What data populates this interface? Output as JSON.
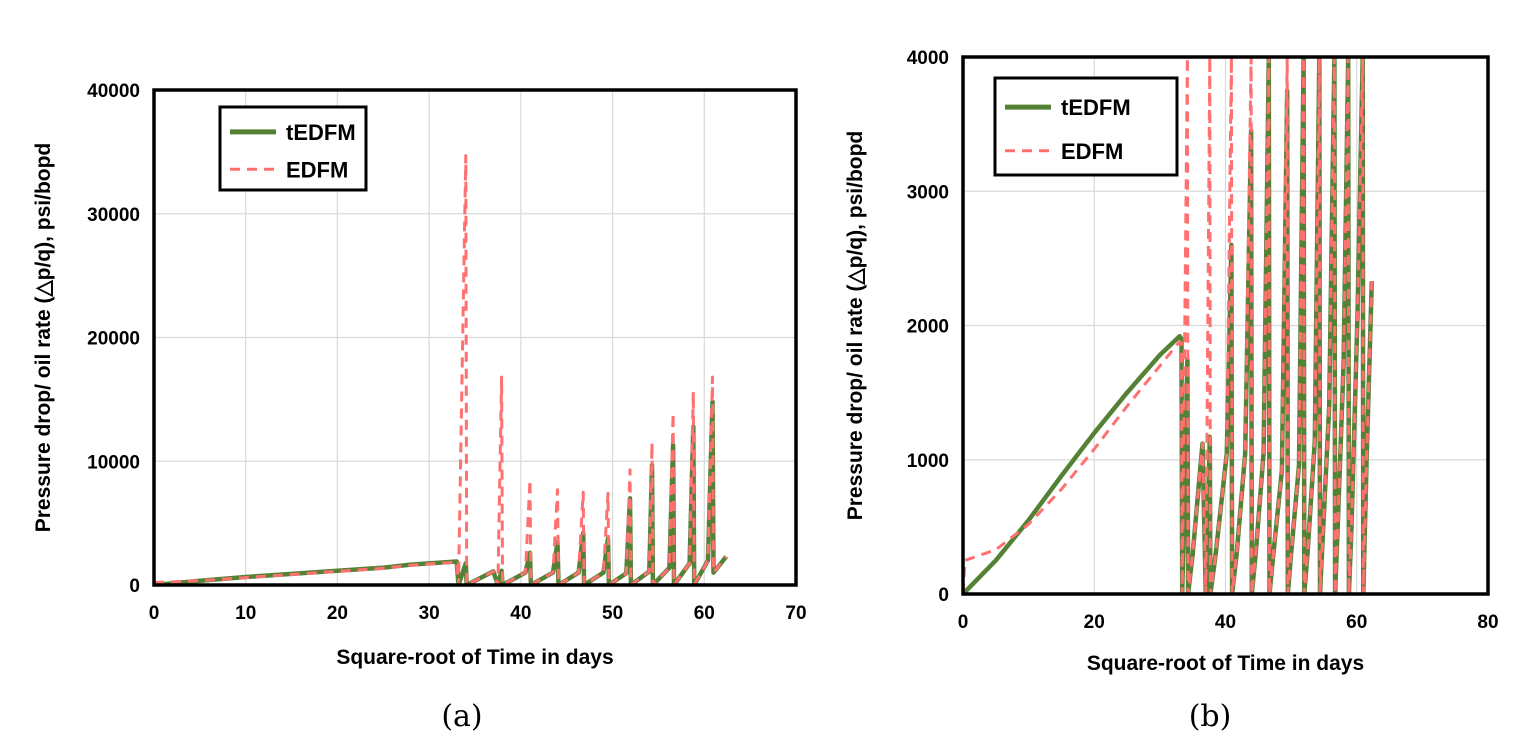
{
  "chart_data": [
    {
      "type": "line",
      "caption": "(a)",
      "xlabel": "Square-root of Time in days",
      "ylabel": "Pressure drop/ oil rate (△p/q), psi/bopd",
      "xlim": [
        0,
        70
      ],
      "ylim": [
        0,
        40000
      ],
      "xticks": [
        0,
        10,
        20,
        30,
        40,
        50,
        60,
        70
      ],
      "yticks": [
        0,
        10000,
        20000,
        30000,
        40000
      ],
      "grid": true,
      "legend_position": "top-left",
      "series": [
        {
          "name": "tEDFM",
          "style": "solid",
          "color": "#548235",
          "x": [
            0,
            5,
            10,
            15,
            20,
            25,
            28,
            33,
            33.2,
            34.0,
            34.1,
            37,
            37.5,
            37.9,
            38.0,
            40.5,
            41.0,
            41.1,
            43.5,
            44.0,
            44.1,
            46.3,
            46.8,
            46.9,
            49.0,
            49.5,
            49.6,
            51.5,
            51.9,
            52.0,
            54.0,
            54.3,
            54.4,
            56.2,
            56.6,
            56.7,
            58.4,
            58.8,
            58.9,
            60.4,
            60.9,
            61.0,
            62.4
          ],
          "y": [
            0,
            350,
            650,
            900,
            1150,
            1400,
            1650,
            1900,
            0,
            1750,
            0,
            1100,
            0,
            1150,
            0,
            1000,
            2600,
            0,
            1000,
            3450,
            0,
            1000,
            4200,
            0,
            1000,
            3750,
            0,
            950,
            7000,
            0,
            1100,
            9700,
            0,
            1400,
            11300,
            0,
            1750,
            12800,
            0,
            2000,
            14800,
            1000,
            2300
          ]
        },
        {
          "name": "EDFM",
          "style": "dashed",
          "color": "#ff7070",
          "x": [
            0,
            5,
            10,
            15,
            20,
            25,
            28,
            33,
            33.2,
            34.0,
            34.1,
            37,
            37.5,
            37.9,
            38.0,
            40.5,
            41.0,
            41.1,
            43.5,
            44.0,
            44.1,
            46.3,
            46.8,
            46.9,
            49.0,
            49.5,
            49.6,
            51.5,
            51.9,
            52.0,
            54.0,
            54.3,
            54.4,
            56.2,
            56.6,
            56.7,
            58.4,
            58.8,
            58.9,
            60.4,
            60.9,
            61.0,
            62.4
          ],
          "y": [
            200,
            350,
            600,
            850,
            1100,
            1350,
            1600,
            1850,
            0,
            34700,
            0,
            1100,
            0,
            16800,
            0,
            1000,
            8500,
            0,
            1000,
            7700,
            0,
            1000,
            7500,
            0,
            1000,
            7400,
            0,
            950,
            9300,
            0,
            1100,
            11500,
            0,
            1400,
            13900,
            0,
            1750,
            15600,
            0,
            2000,
            16800,
            1000,
            2300
          ]
        }
      ]
    },
    {
      "type": "line",
      "caption": "(b)",
      "xlabel": "Square-root of Time in days",
      "ylabel": "Pressure drop/ oil rate (△p/q), psi/bopd",
      "xlim": [
        0,
        80
      ],
      "ylim": [
        0,
        4000
      ],
      "xticks": [
        0,
        20,
        40,
        60,
        80
      ],
      "yticks": [
        0,
        1000,
        2000,
        3000,
        4000
      ],
      "grid": true,
      "legend_position": "top-left",
      "series": [
        {
          "name": "tEDFM",
          "style": "solid",
          "color": "#548235",
          "x": [
            0,
            5,
            10,
            15,
            20,
            25,
            30,
            33,
            33.3,
            33.4,
            34.2,
            34.3,
            35.0,
            36.5,
            37.0,
            37.6,
            37.7,
            38.5,
            40.2,
            40.9,
            41.0,
            41.7,
            43.0,
            43.9,
            44.0,
            44.6,
            45.8,
            46.6,
            46.7,
            47.3,
            48.6,
            49.4,
            49.5,
            50.0,
            51.2,
            51.9,
            52.0,
            52.5,
            53.6,
            54.3,
            54.4,
            54.8,
            55.8,
            56.6,
            56.7,
            57.1,
            58.0,
            58.7,
            58.8,
            59.2,
            60.1,
            60.9,
            61.0,
            61.5,
            62.3
          ],
          "y": [
            0,
            250,
            550,
            880,
            1200,
            1500,
            1780,
            1920,
            1900,
            0,
            1750,
            0,
            300,
            1120,
            0,
            1170,
            0,
            300,
            1050,
            2600,
            0,
            300,
            1050,
            3450,
            0,
            300,
            1050,
            4000,
            0,
            300,
            920,
            3750,
            0,
            300,
            960,
            4000,
            0,
            300,
            1140,
            4000,
            0,
            400,
            1400,
            4000,
            0,
            500,
            1720,
            4000,
            0,
            500,
            2050,
            4000,
            0,
            1000,
            2330
          ]
        },
        {
          "name": "EDFM",
          "style": "dashed",
          "color": "#ff7070",
          "x": [
            0,
            0.3,
            5,
            10,
            15,
            20,
            25,
            30,
            33,
            33.3,
            33.4,
            34.2,
            34.3,
            35.0,
            36.5,
            37.0,
            37.6,
            37.7,
            38.5,
            40.2,
            40.9,
            41.0,
            41.7,
            43.0,
            43.9,
            44.0,
            44.6,
            45.8,
            46.6,
            46.7,
            47.3,
            48.6,
            49.4,
            49.5,
            50.0,
            51.2,
            51.9,
            52.0,
            52.5,
            53.6,
            54.3,
            54.4,
            54.8,
            55.8,
            56.6,
            56.7,
            57.1,
            58.0,
            58.7,
            58.8,
            59.2,
            60.1,
            60.9,
            61.0,
            61.5,
            62.3
          ],
          "y": [
            0,
            250,
            330,
            520,
            780,
            1080,
            1400,
            1700,
            1880,
            1870,
            0,
            4000,
            0,
            300,
            1120,
            0,
            4000,
            0,
            300,
            1050,
            4000,
            0,
            300,
            1050,
            4000,
            0,
            300,
            1050,
            4000,
            0,
            300,
            920,
            4000,
            0,
            300,
            960,
            4000,
            0,
            300,
            1140,
            4000,
            0,
            400,
            1400,
            4000,
            0,
            500,
            1720,
            4000,
            0,
            500,
            2050,
            4000,
            0,
            1000,
            2330
          ]
        }
      ]
    }
  ]
}
